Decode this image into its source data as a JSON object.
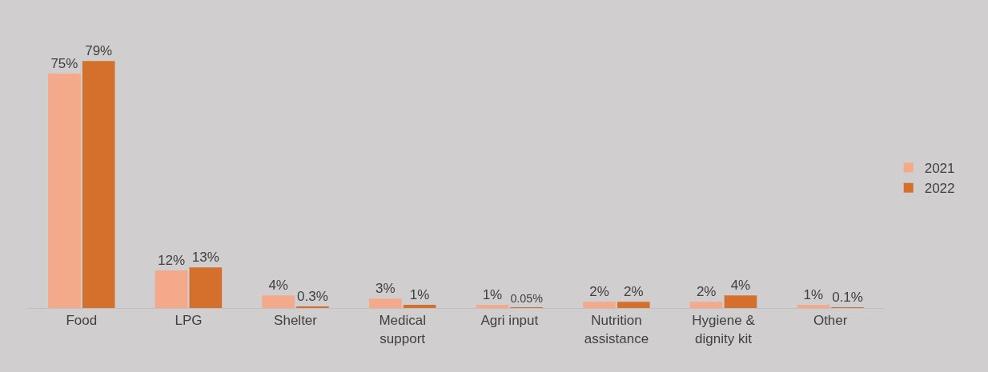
{
  "chart_data": {
    "type": "bar",
    "categories": [
      "Food",
      "LPG",
      "Shelter",
      "Medical support",
      "Agri input",
      "Nutrition assistance",
      "Hygiene & dignity kit",
      "Other"
    ],
    "series": [
      {
        "name": "2021",
        "color": "#f4a98a",
        "values": [
          75,
          12,
          4,
          3,
          1,
          2,
          2,
          1
        ],
        "value_labels": [
          "75%",
          "12%",
          "4%",
          "3%",
          "1%",
          "2%",
          "2%",
          "1%"
        ]
      },
      {
        "name": "2022",
        "color": "#d4702c",
        "values": [
          79,
          13,
          0.3,
          1,
          0.05,
          2,
          4,
          0.1
        ],
        "value_labels": [
          "79%",
          "13%",
          "0.3%",
          "1%",
          "0.05%",
          "2%",
          "4%",
          "0.1%"
        ]
      }
    ],
    "grid": false,
    "legend": "right"
  }
}
